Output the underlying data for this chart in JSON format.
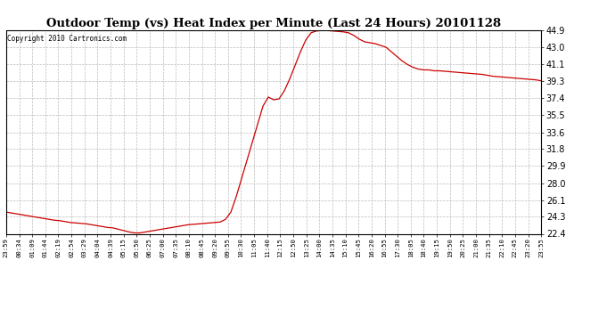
{
  "title": "Outdoor Temp (vs) Heat Index per Minute (Last 24 Hours) 20101128",
  "copyright": "Copyright 2010 Cartronics.com",
  "line_color": "#cc0000",
  "background_color": "#ffffff",
  "grid_color": "#bbbbbb",
  "ylim": [
    22.4,
    44.9
  ],
  "yticks": [
    22.4,
    24.3,
    26.1,
    28.0,
    29.9,
    31.8,
    33.6,
    35.5,
    37.4,
    39.3,
    41.1,
    43.0,
    44.9
  ],
  "xtick_labels": [
    "23:59",
    "00:34",
    "01:09",
    "01:44",
    "02:19",
    "02:54",
    "03:29",
    "04:04",
    "04:39",
    "05:15",
    "05:50",
    "06:25",
    "07:00",
    "07:35",
    "08:10",
    "08:45",
    "09:20",
    "09:55",
    "10:30",
    "11:05",
    "11:40",
    "12:15",
    "12:50",
    "13:25",
    "14:00",
    "14:35",
    "15:10",
    "15:45",
    "16:20",
    "16:55",
    "17:30",
    "18:05",
    "18:40",
    "19:15",
    "19:50",
    "20:25",
    "21:00",
    "21:35",
    "22:10",
    "22:45",
    "23:20",
    "23:55"
  ],
  "curve_x": [
    0,
    1,
    2,
    3,
    4,
    5,
    6,
    7,
    8,
    9,
    10,
    11,
    12,
    13,
    14,
    15,
    16,
    17,
    18,
    19,
    20,
    21,
    22,
    23,
    24,
    25,
    26,
    27,
    28,
    29,
    30,
    31,
    32,
    33,
    34,
    35,
    36,
    37,
    38,
    39,
    40,
    41,
    42,
    43,
    44,
    45,
    46,
    47,
    48,
    49,
    50,
    51,
    52,
    53,
    54,
    55,
    56,
    57,
    58,
    59,
    60,
    61,
    62,
    63,
    64,
    65,
    66,
    67,
    68,
    69,
    70,
    71,
    72,
    73,
    74,
    75,
    76,
    77,
    78,
    79,
    80,
    81,
    82,
    83,
    84,
    85,
    86,
    87,
    88,
    89,
    90,
    91,
    92,
    93,
    94,
    95,
    96,
    97,
    98,
    99,
    100
  ],
  "curve_y": [
    24.8,
    24.7,
    24.6,
    24.5,
    24.4,
    24.3,
    24.2,
    24.1,
    24.0,
    23.9,
    23.85,
    23.75,
    23.65,
    23.6,
    23.55,
    23.5,
    23.4,
    23.3,
    23.2,
    23.1,
    23.05,
    22.9,
    22.75,
    22.6,
    22.5,
    22.5,
    22.6,
    22.7,
    22.8,
    22.9,
    23.0,
    23.1,
    23.2,
    23.3,
    23.4,
    23.45,
    23.5,
    23.55,
    23.6,
    23.65,
    23.7,
    24.0,
    24.8,
    26.5,
    28.5,
    30.5,
    32.5,
    34.5,
    36.5,
    37.5,
    37.2,
    37.3,
    38.2,
    39.5,
    41.0,
    42.5,
    43.8,
    44.6,
    44.8,
    44.85,
    44.85,
    44.8,
    44.75,
    44.7,
    44.6,
    44.3,
    43.9,
    43.6,
    43.5,
    43.4,
    43.2,
    43.0,
    42.5,
    42.0,
    41.5,
    41.1,
    40.8,
    40.6,
    40.5,
    40.5,
    40.4,
    40.4,
    40.35,
    40.3,
    40.25,
    40.2,
    40.15,
    40.1,
    40.05,
    40.0,
    39.9,
    39.8,
    39.75,
    39.7,
    39.65,
    39.6,
    39.55,
    39.5,
    39.45,
    39.4,
    39.3
  ]
}
